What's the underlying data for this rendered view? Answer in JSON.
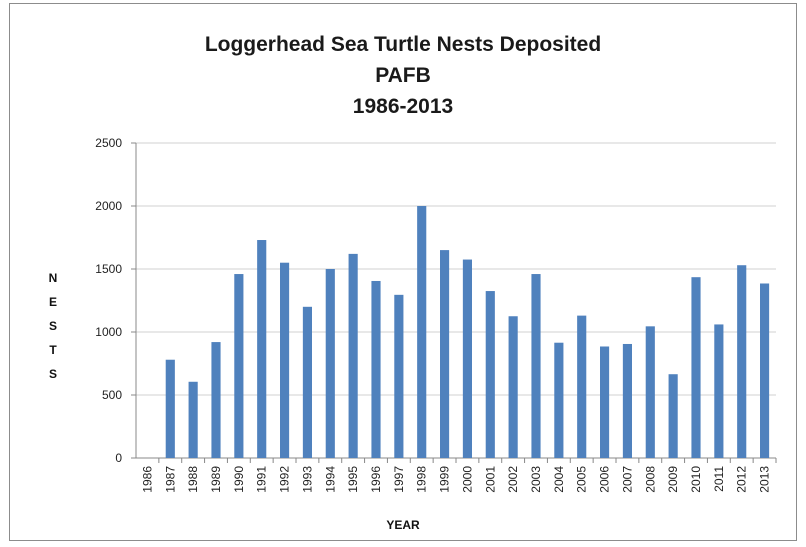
{
  "chart_data": {
    "type": "bar",
    "title_lines": [
      "Loggerhead Sea Turtle Nests Deposited",
      "PAFB",
      "1986-2013"
    ],
    "xlabel": "YEAR",
    "ylabel": "NESTS",
    "ylim": [
      0,
      2500
    ],
    "yticks": [
      "0",
      "500",
      "1000",
      "1500",
      "2000",
      "2500"
    ],
    "grid": true,
    "legend": "none",
    "bar_color": "#4f81bd",
    "categories": [
      "1986",
      "1987",
      "1988",
      "1989",
      "1990",
      "1991",
      "1992",
      "1993",
      "1994",
      "1995",
      "1996",
      "1997",
      "1998",
      "1999",
      "2000",
      "2001",
      "2002",
      "2003",
      "2004",
      "2005",
      "2006",
      "2007",
      "2008",
      "2009",
      "2010",
      "2011",
      "2012",
      "2013"
    ],
    "values": [
      0,
      780,
      605,
      920,
      1460,
      1730,
      1550,
      1200,
      1500,
      1620,
      1405,
      1295,
      2000,
      1650,
      1575,
      1325,
      1125,
      1460,
      915,
      1130,
      885,
      905,
      1045,
      665,
      1435,
      1060,
      1530,
      1385
    ]
  }
}
